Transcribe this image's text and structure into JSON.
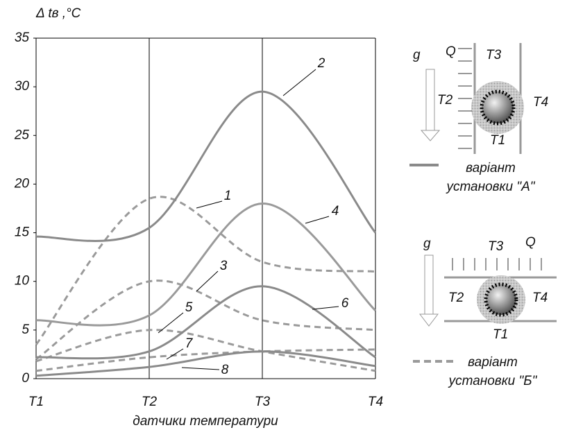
{
  "chart_data": {
    "type": "line",
    "y_label": "Δ tв ,°C",
    "x_label": "датчики температури",
    "categories": [
      "T1",
      "T2",
      "T3",
      "T4"
    ],
    "ylim": [
      0,
      35
    ],
    "yticks": [
      0,
      5,
      10,
      15,
      20,
      25,
      30,
      35
    ],
    "series": [
      {
        "name": "1",
        "color": "#9a9a9a",
        "style": "dashed",
        "values": [
          3.5,
          18.5,
          12,
          11
        ]
      },
      {
        "name": "2",
        "color": "#8a8a8a",
        "style": "solid",
        "values": [
          14.6,
          15.5,
          29.5,
          15
        ]
      },
      {
        "name": "3",
        "color": "#9a9a9a",
        "style": "dashed",
        "values": [
          2,
          10,
          6,
          5
        ]
      },
      {
        "name": "4",
        "color": "#9a9a9a",
        "style": "solid",
        "values": [
          6,
          6.5,
          18,
          7
        ]
      },
      {
        "name": "5",
        "color": "#9a9a9a",
        "style": "dashed",
        "values": [
          1.8,
          5,
          2.8,
          0.8
        ]
      },
      {
        "name": "6",
        "color": "#8a8a8a",
        "style": "solid",
        "values": [
          2.2,
          2.8,
          9.5,
          2.2
        ]
      },
      {
        "name": "7",
        "color": "#9a9a9a",
        "style": "dashed",
        "values": [
          0.8,
          2.2,
          2.8,
          3
        ]
      },
      {
        "name": "8",
        "color": "#8a8a8a",
        "style": "solid",
        "values": [
          0.3,
          1.2,
          2.8,
          1.3
        ]
      }
    ],
    "legend": [
      {
        "style": "solid",
        "color": "#8a8a8a",
        "text": [
          "варіант",
          "установки \"А\""
        ]
      },
      {
        "style": "dashed",
        "color": "#9a9a9a",
        "text": [
          "варіант",
          "установки \"Б\""
        ]
      }
    ]
  },
  "diagram_a": {
    "g": "g",
    "q": "Q",
    "t1": "T1",
    "t2": "T2",
    "t3": "T3",
    "t4": "T4"
  },
  "diagram_b": {
    "g": "g",
    "q": "Q",
    "t1": "T1",
    "t2": "T2",
    "t3": "T3",
    "t4": "T4"
  }
}
